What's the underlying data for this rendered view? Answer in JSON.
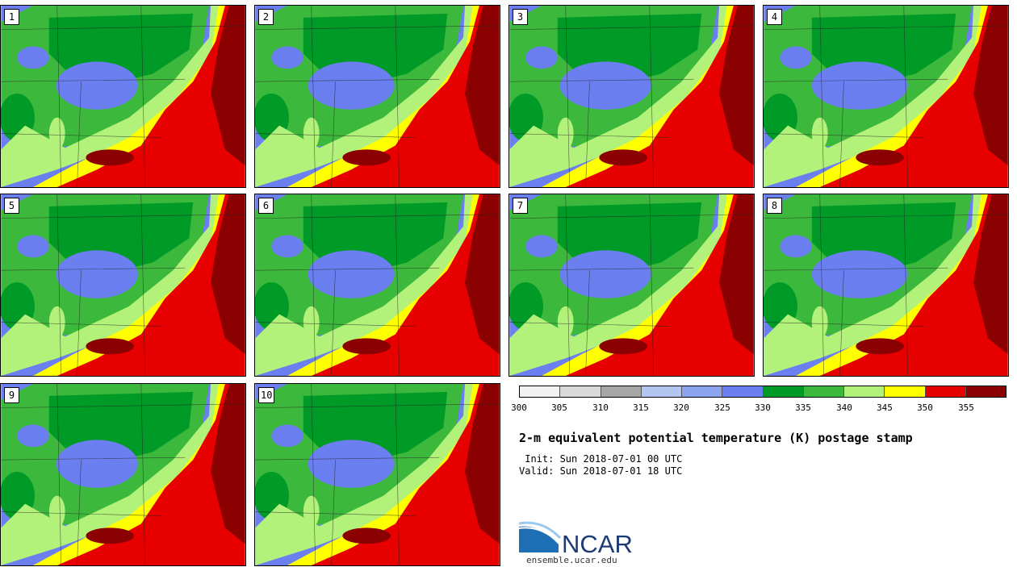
{
  "panels": [
    {
      "label": "1"
    },
    {
      "label": "2"
    },
    {
      "label": "3"
    },
    {
      "label": "4"
    },
    {
      "label": "5"
    },
    {
      "label": "6"
    },
    {
      "label": "7"
    },
    {
      "label": "8"
    },
    {
      "label": "9"
    },
    {
      "label": "10"
    }
  ],
  "legend": {
    "colors": [
      "#f2f2f2",
      "#d9d9d9",
      "#a6a6a6",
      "#b3c6f2",
      "#8ca3f0",
      "#6b7ff0",
      "#009b26",
      "#3cb83c",
      "#b3f27a",
      "#ffff00",
      "#e60000",
      "#8b0000"
    ],
    "ticks": [
      "300",
      "305",
      "310",
      "315",
      "320",
      "325",
      "330",
      "335",
      "340",
      "345",
      "350",
      "355"
    ]
  },
  "title": "2-m equivalent potential temperature (K) postage stamp",
  "init": " Init: Sun 2018-07-01 00 UTC",
  "valid": "Valid: Sun 2018-07-01 18 UTC",
  "logo": {
    "text": "NCAR",
    "website": "ensemble.ucar.edu"
  }
}
